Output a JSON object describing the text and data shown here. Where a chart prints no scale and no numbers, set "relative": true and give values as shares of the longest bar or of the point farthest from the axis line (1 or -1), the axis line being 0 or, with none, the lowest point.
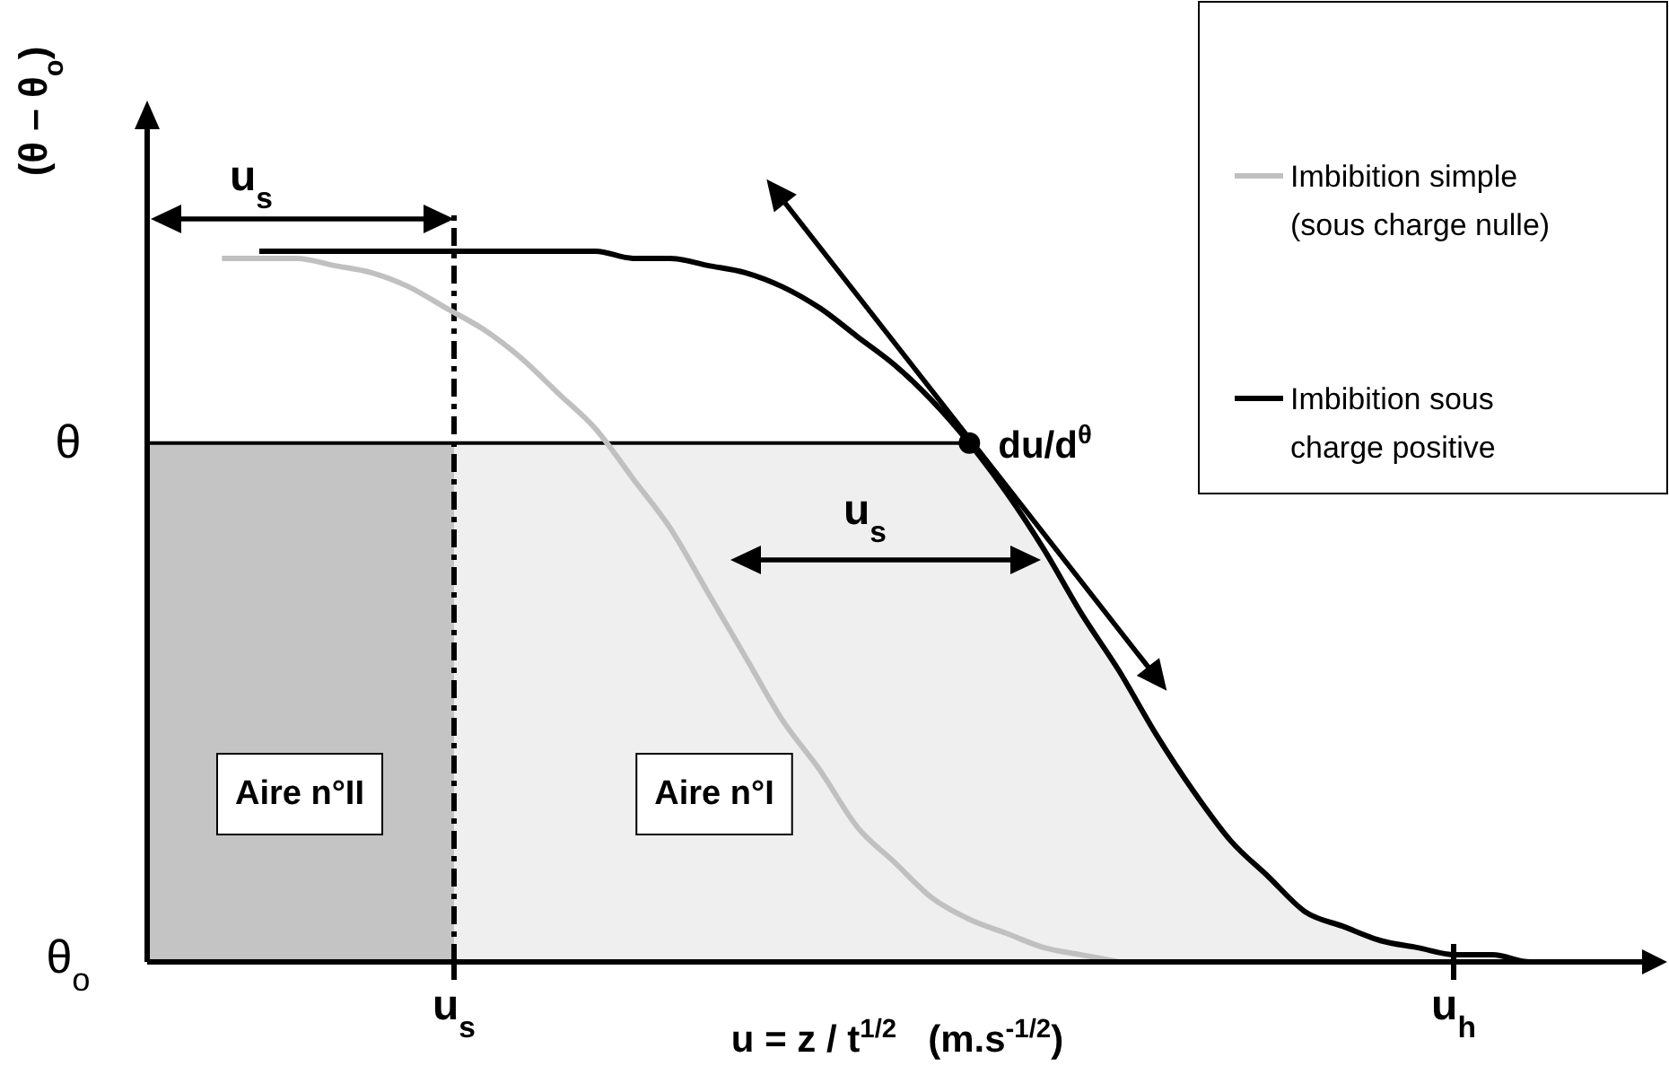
{
  "chart_data": {
    "type": "line",
    "relative": true,
    "xlabel": "u = z / t$^{1/2}$   (m.s$^{-1/2}$)",
    "ylabel": "(θ – θ$_{o}$)",
    "categories": [
      null,
      null,
      null,
      null,
      null,
      null,
      null,
      null,
      null,
      null,
      null,
      null,
      null,
      null,
      null,
      null,
      null,
      null,
      null,
      null,
      null,
      null,
      null,
      null,
      null,
      null,
      null,
      null,
      null,
      null,
      null,
      null,
      null,
      null,
      null,
      null,
      null,
      null,
      null,
      null,
      null
    ],
    "legend": "top right",
    "marker": "none",
    "line_style": "solid",
    "series": [
      {
        "name": "Imbibition simple (sous charge nulle)",
        "color": "#c0c0c0",
        "values": [
          null,
          null,
          0.99,
          0.99,
          0.99,
          0.98,
          0.97,
          0.95,
          0.92,
          0.89,
          0.85,
          0.8,
          0.75,
          0.68,
          0.61,
          0.52,
          0.43,
          0.34,
          0.27,
          0.19,
          0.14,
          0.09,
          0.06,
          0.04,
          0.02,
          0.01,
          0,
          null,
          null,
          null,
          null,
          null,
          null,
          null,
          null,
          null,
          null,
          null,
          null,
          null,
          null
        ]
      },
      {
        "name": "Imbibition sous charge positive",
        "color": "#000000",
        "values": [
          null,
          null,
          null,
          1,
          1,
          1,
          1,
          1,
          1,
          1,
          1,
          1,
          1,
          0.99,
          0.99,
          0.98,
          0.97,
          0.95,
          0.92,
          0.88,
          0.84,
          0.79,
          0.73,
          0.66,
          0.58,
          0.49,
          0.41,
          0.32,
          0.24,
          0.17,
          0.12,
          0.07,
          0.05,
          0.03,
          0.02,
          0.01,
          0.01,
          0,
          0,
          0,
          0
        ]
      }
    ],
    "ref_lines": [
      {
        "axis": "y",
        "value": 0.73,
        "label": "θ",
        "color": "#000000"
      }
    ],
    "bands": [
      {
        "axis": "y",
        "from": 0,
        "to": 0.73,
        "label": "Aire n°II",
        "color": "#c4c4c4"
      },
      {
        "axis": "y",
        "from": 0,
        "to": 0.73,
        "label": "Aire n°I",
        "color": "#efefef"
      }
    ],
    "annotations": [
      "θ$_{o}$",
      "u$_{s}$",
      "u$_{h}$",
      "u$_{s}$",
      "u$_{s}$",
      "du/d$^{θ}$"
    ]
  }
}
